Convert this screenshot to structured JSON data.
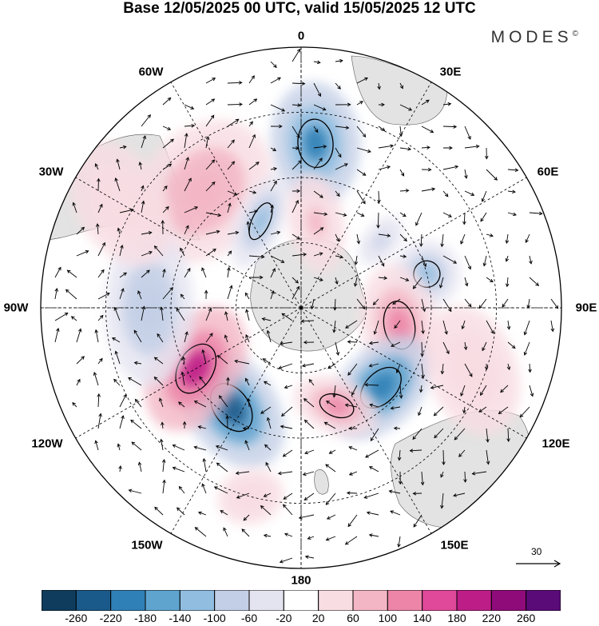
{
  "title": "Base 12/05/2025 00 UTC, valid 15/05/2025 12 UTC",
  "brand": {
    "name": "MODES",
    "mark": "©"
  },
  "map": {
    "projection": "south-polar-stereographic",
    "longitude_labels": {
      "top": "0",
      "right": "90E",
      "bottom": "180",
      "left": "90W",
      "tr1": "30E",
      "tr2": "60E",
      "br1": "120E",
      "br2": "150E",
      "bl1": "150W",
      "bl2": "120W",
      "tl1": "60W",
      "tl2": "30W"
    },
    "reference_vector": "30"
  },
  "colorbar": {
    "colors": [
      "#0f3c5c",
      "#1a5a8a",
      "#2f80b6",
      "#5fa3cf",
      "#90bde0",
      "#c3cfe6",
      "#e4e4f1",
      "#ffffff",
      "#f8dde3",
      "#f3b6c4",
      "#ec85a8",
      "#e0489a",
      "#bd1d87",
      "#8f0b7a",
      "#5a0b78"
    ],
    "labels": [
      "-260",
      "-220",
      "-180",
      "-140",
      "-100",
      "-60",
      "-20",
      "20",
      "60",
      "100",
      "140",
      "180",
      "220",
      "260"
    ]
  },
  "anomalies": [
    {
      "lon": 5,
      "lat": -52,
      "value": -190,
      "sx": 40,
      "sy": 55
    },
    {
      "lon": 320,
      "lat": -55,
      "value": 90,
      "sx": 55,
      "sy": 70
    },
    {
      "lon": 335,
      "lat": -68,
      "value": -110,
      "sx": 20,
      "sy": 45
    },
    {
      "lon": 10,
      "lat": -70,
      "value": 80,
      "sx": 25,
      "sy": 45
    },
    {
      "lon": 75,
      "lat": -60,
      "value": -120,
      "sx": 30,
      "sy": 30
    },
    {
      "lon": 50,
      "lat": -66,
      "value": -80,
      "sx": 25,
      "sy": 15
    },
    {
      "lon": 100,
      "lat": -67,
      "value": 120,
      "sx": 55,
      "sy": 35
    },
    {
      "lon": 135,
      "lat": -64,
      "value": -200,
      "sx": 35,
      "sy": 55
    },
    {
      "lon": 160,
      "lat": -66,
      "value": 140,
      "sx": 40,
      "sy": 25
    },
    {
      "lon": 215,
      "lat": -62,
      "value": -220,
      "sx": 40,
      "sy": 60
    },
    {
      "lon": 240,
      "lat": -62,
      "value": 200,
      "sx": 60,
      "sy": 40
    },
    {
      "lon": 270,
      "lat": -55,
      "value": -90,
      "sx": 70,
      "sy": 40
    },
    {
      "lon": 110,
      "lat": -48,
      "value": 60,
      "sx": 60,
      "sy": 40
    },
    {
      "lon": 300,
      "lat": -42,
      "value": 30,
      "sx": 60,
      "sy": 40
    },
    {
      "lon": 195,
      "lat": -45,
      "value": 40,
      "sx": 30,
      "sy": 25
    }
  ]
}
